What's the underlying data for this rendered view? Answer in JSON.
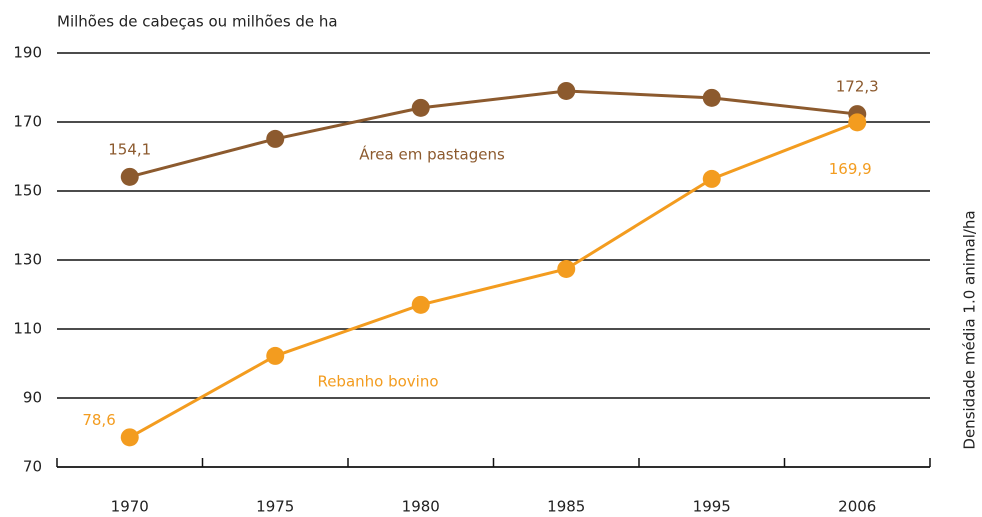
{
  "chart_data": {
    "type": "line",
    "title": "Milhões de cabeças ou milhões de ha",
    "y2_label": "Densidade média 1.0 animal/ha",
    "categories": [
      "1970",
      "1975",
      "1980",
      "1985",
      "1995",
      "2006"
    ],
    "series": [
      {
        "name": "Área em pastagens",
        "color": "#8c5a2e",
        "values": [
          154.1,
          165.1,
          174.1,
          179,
          177,
          172.3
        ],
        "value_labels": [
          "154,1",
          null,
          null,
          null,
          null,
          "172,3"
        ]
      },
      {
        "name": "Rebanho bovino",
        "color": "#f39c1f",
        "values": [
          78.6,
          102.2,
          117,
          127.4,
          153.5,
          169.9
        ],
        "value_labels": [
          "78,6",
          null,
          null,
          null,
          null,
          "169,9"
        ]
      }
    ],
    "ylim": [
      70,
      190
    ],
    "yticks": [
      70,
      90,
      110,
      130,
      150,
      170,
      190
    ],
    "grid": true
  }
}
